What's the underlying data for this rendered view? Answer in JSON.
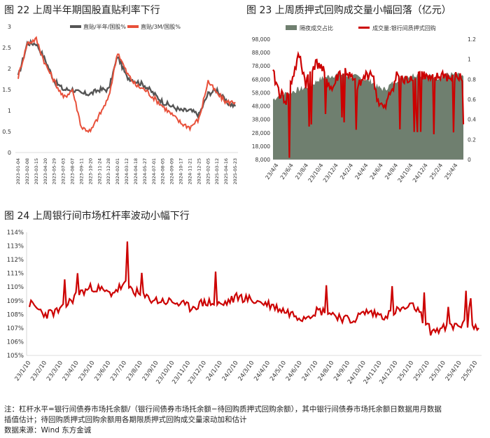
{
  "figure22": {
    "title": "图 22 上周半年期国股直贴利率下行"
  },
  "figure23": {
    "title": "图 23 上周质押式回购成交量小幅回落（亿元）"
  },
  "figure24": {
    "title": "图 24 上周银行间市场杠杆率波动小幅下行"
  },
  "notes": {
    "line1": "注：杠杆水平=银行间债券市场托余额/（银行间债券市场托余额−待回购质押式回购余额），其中银行间债券市场托余额日数据用月数据",
    "line2": "插值估计；待回购质押式回购余额用各期限质押式回购成交量滚动加和估计",
    "line3": "数据来源：Wind 东方金诚"
  },
  "colors": {
    "red": "#cc0000",
    "gray_line": "#555555",
    "orange_red": "#e8503a",
    "gray_area": "#6f7f6f"
  },
  "chart_data": [
    {
      "type": "line",
      "title": "图 22 上周半年期国股直贴利率下行",
      "x": [
        "2023-01-04",
        "2023-02-08",
        "2023-03-15",
        "2023-04-20",
        "2023-05-29",
        "2023-07-03",
        "2023-08-07",
        "2023-09-11",
        "2023-10-20",
        "2023-11-24",
        "2023-12-28",
        "2024-02-01",
        "2024-03-12",
        "2024-04-18",
        "2024-05-27",
        "2024-07-01",
        "2024-08-05",
        "2024-09-09",
        "2024-10-17",
        "2024-11-21",
        "2024-12-25",
        "2025-02-05",
        "2025-03-12",
        "2025-04-16",
        "2025-05-23"
      ],
      "xlabels": [
        "2023-01-04",
        "2023-02-08",
        "2023-03-15",
        "2023-04-20",
        "2023-05-29",
        "2023-07-03",
        "2023-08-07",
        "2023-09-11",
        "2023-10-20",
        "2023-11-24",
        "2023-12-28",
        "2024-02-01",
        "2024-03-12",
        "2024-04-18",
        "2024-05-27",
        "2024-07-01",
        "2024-08-05",
        "2024-09-09",
        "2024-10-17",
        "2024-11-21",
        "2024-12-25",
        "2025-02-05",
        "2025-03-12",
        "2025-04-16",
        "2025-05-23"
      ],
      "series": [
        {
          "name": "直贴/半年/国股%",
          "color": "#555555",
          "values": [
            1.8,
            2.6,
            2.6,
            2.2,
            1.7,
            1.5,
            1.5,
            1.4,
            1.4,
            1.5,
            1.5,
            2.3,
            1.8,
            1.7,
            1.6,
            1.4,
            1.2,
            1.1,
            1.0,
            1.0,
            0.9,
            1.4,
            1.5,
            1.2,
            1.1
          ]
        },
        {
          "name": "直贴/3M/国股%",
          "color": "#e8503a",
          "values": [
            1.8,
            2.6,
            2.7,
            2.1,
            1.7,
            1.3,
            1.5,
            0.6,
            0.5,
            0.9,
            1.3,
            2.4,
            1.9,
            1.6,
            1.5,
            1.3,
            1.1,
            0.9,
            0.7,
            0.6,
            0.8,
            1.7,
            1.4,
            1.2,
            1.2
          ]
        }
      ],
      "ylim": [
        0,
        3
      ],
      "yticks": [
        0,
        0.5,
        1,
        1.5,
        2,
        2.5,
        3
      ],
      "legend": "top-center"
    },
    {
      "type": "area",
      "title": "图 23 上周质押式回购成交量小幅回落（亿元）",
      "xlabels": [
        "23/4/4",
        "23/6/4",
        "23/8/4",
        "23/10/4",
        "23/12/4",
        "24/2/4",
        "24/4/4",
        "24/6/4",
        "24/8/4",
        "24/10/4",
        "24/12/4",
        "25/2/4",
        "25/4/4"
      ],
      "series": [
        {
          "name": "隔夜成交占比",
          "axis": "right",
          "color": "#6f7f6f",
          "values": [
            0.6,
            0.64,
            0.66,
            0.68,
            0.7,
            0.72,
            0.75,
            0.8,
            0.82,
            0.84,
            0.85,
            0.84,
            0.83,
            0.82,
            0.8,
            0.78,
            0.72,
            0.7,
            0.75,
            0.8,
            0.83,
            0.84,
            0.85,
            0.84,
            0.83,
            0.82,
            0.84,
            0.85,
            0.84,
            0.83
          ]
        },
        {
          "name": "成交量:银行间质押式回购",
          "axis": "left",
          "color": "#cc0000",
          "values": [
            72000,
            58000,
            52000,
            70000,
            86000,
            65000,
            78000,
            80000,
            70000,
            60000,
            72000,
            75000,
            68000,
            62000,
            70000,
            74000,
            52000,
            45000,
            60000,
            72000,
            66000,
            70000,
            74000,
            71000,
            67000,
            69000,
            72000,
            68000,
            70000,
            68000
          ]
        }
      ],
      "ylim_left": [
        8000,
        98000
      ],
      "yticks_left": [
        8000,
        18000,
        28000,
        38000,
        48000,
        58000,
        68000,
        78000,
        88000,
        98000
      ],
      "ylim_right": [
        0,
        1.2
      ],
      "yticks_right": [
        0,
        0.2,
        0.4,
        0.6,
        0.8,
        1,
        1.2
      ],
      "legend": "top-center"
    },
    {
      "type": "line",
      "title": "图 24 上周银行间市场杠杆率波动小幅下行",
      "xlabels": [
        "23/1/10",
        "23/2/10",
        "23/3/10",
        "23/4/10",
        "23/5/10",
        "23/6/10",
        "23/7/10",
        "23/8/10",
        "23/9/10",
        "23/10/10",
        "23/11/10",
        "23/12/10",
        "24/1/10",
        "24/2/10",
        "24/3/10",
        "24/4/10",
        "24/5/10",
        "24/6/10",
        "24/7/10",
        "24/8/10",
        "24/9/10",
        "24/10/10",
        "24/11/10",
        "24/12/10",
        "25/1/10",
        "25/2/10",
        "25/3/10",
        "25/4/10",
        "25/5/10"
      ],
      "series": [
        {
          "name": "杠杆水平",
          "color": "#cc0000",
          "values": [
            108.8,
            108.0,
            108.3,
            109.5,
            110.0,
            109.5,
            110.2,
            109.3,
            109.0,
            108.9,
            108.5,
            108.9,
            108.7,
            109.3,
            109.0,
            108.7,
            108.2,
            107.8,
            108.3,
            108.0,
            107.5,
            108.2,
            107.9,
            108.3,
            108.6,
            106.8,
            107.0,
            107.3,
            107.0
          ]
        }
      ],
      "ylim": [
        105,
        114
      ],
      "yticks": [
        "105%",
        "106%",
        "107%",
        "108%",
        "109%",
        "110%",
        "111%",
        "112%",
        "113%",
        "114%"
      ],
      "legend": "none"
    }
  ]
}
